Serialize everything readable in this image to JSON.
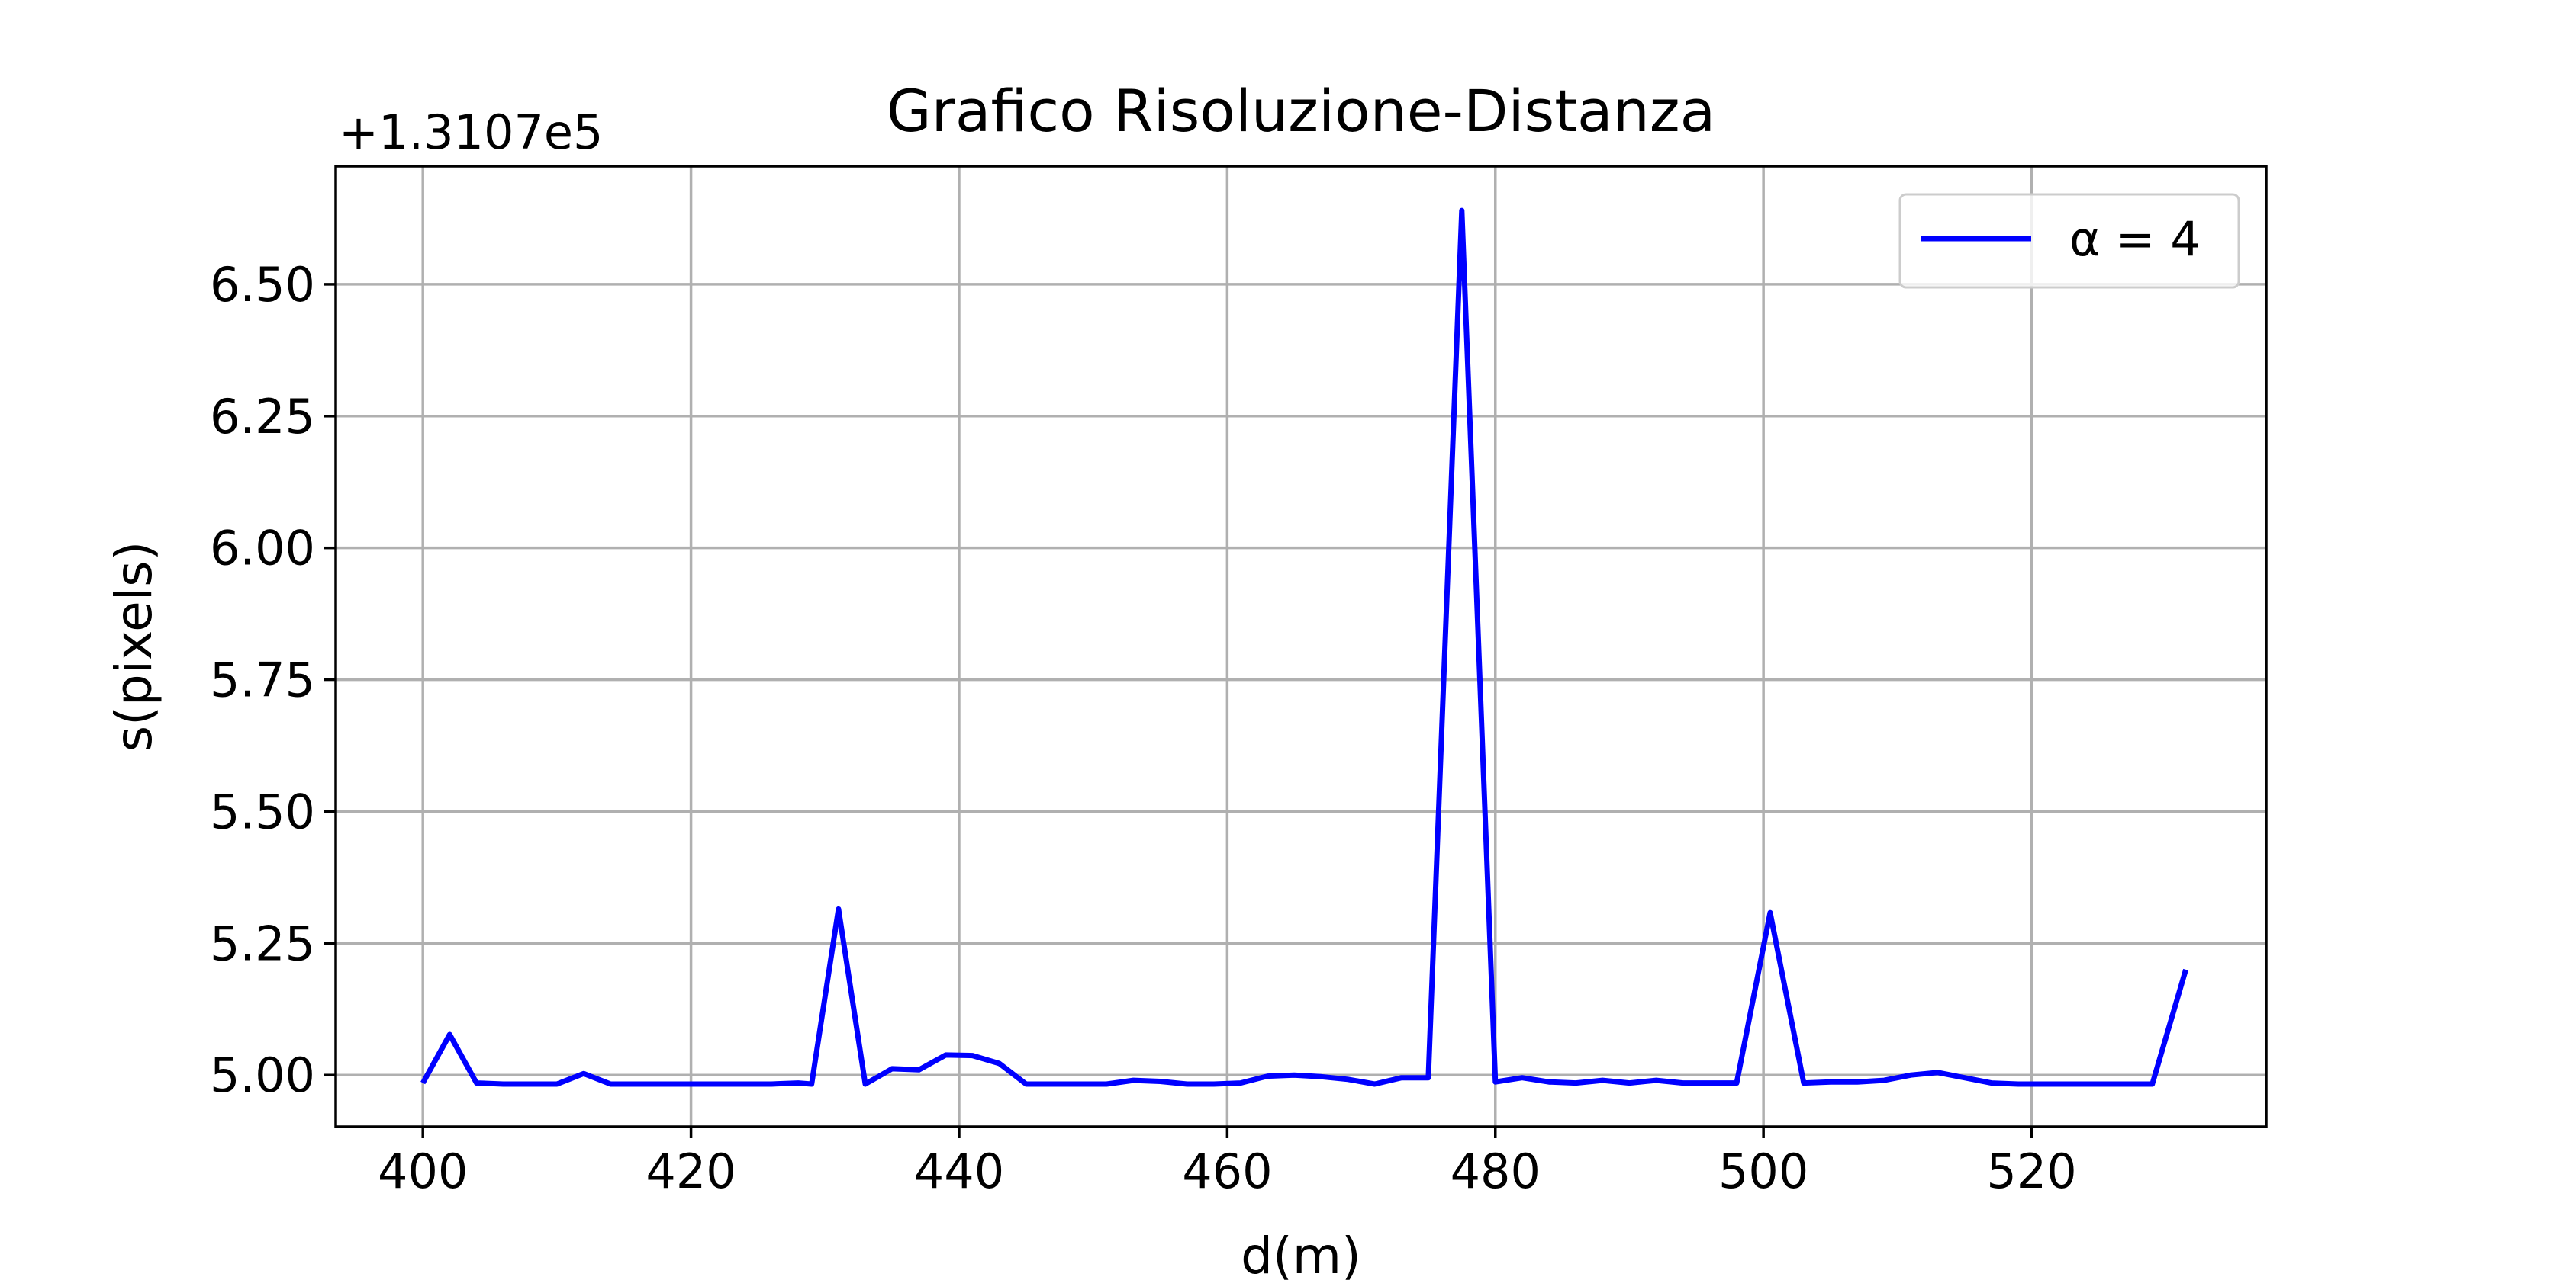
{
  "chart_data": {
    "type": "line",
    "title": "Grafico Risoluzione-Distanza",
    "xlabel": "d(m)",
    "ylabel": "s(pixels)",
    "y_offset_label": "+1.3107e5",
    "xlim": [
      393.5,
      537.5
    ],
    "ylim": [
      4.902,
      6.724
    ],
    "x_ticks": [
      400,
      420,
      440,
      460,
      480,
      500,
      520
    ],
    "x_tick_labels": [
      "400",
      "420",
      "440",
      "460",
      "480",
      "500",
      "520"
    ],
    "y_ticks": [
      5.0,
      5.25,
      5.5,
      5.75,
      6.0,
      6.25,
      6.5
    ],
    "y_tick_labels": [
      "5.00",
      "5.25",
      "5.50",
      "5.75",
      "6.00",
      "6.25",
      "6.50"
    ],
    "grid": true,
    "legend_position": "top-right",
    "line_color": "#0000ff",
    "series": [
      {
        "name": "α = 4",
        "x": [
          400,
          402,
          404,
          406,
          408,
          410,
          412,
          414,
          416,
          418,
          420,
          422,
          424,
          426,
          428,
          429,
          431,
          433,
          435,
          437,
          439,
          441,
          443,
          445,
          447,
          449,
          451,
          453,
          455,
          457,
          459,
          461,
          463,
          465,
          467,
          469,
          471,
          473,
          475,
          477.5,
          480,
          482,
          484,
          486,
          488,
          490,
          492,
          494,
          496,
          498,
          500.5,
          503,
          505,
          507,
          509,
          511,
          513,
          515,
          517,
          519,
          521,
          523,
          525,
          527,
          529,
          531.5
        ],
        "values": [
          4.985,
          5.077,
          4.985,
          4.983,
          4.983,
          4.983,
          5.003,
          4.983,
          4.983,
          4.983,
          4.983,
          4.983,
          4.983,
          4.983,
          4.985,
          4.983,
          5.315,
          4.983,
          5.012,
          5.01,
          5.038,
          5.037,
          5.022,
          4.983,
          4.983,
          4.983,
          4.983,
          4.99,
          4.988,
          4.983,
          4.983,
          4.985,
          4.998,
          5.0,
          4.997,
          4.992,
          4.983,
          4.995,
          4.995,
          6.64,
          4.987,
          4.995,
          4.987,
          4.985,
          4.99,
          4.985,
          4.99,
          4.985,
          4.985,
          4.985,
          5.308,
          4.985,
          4.987,
          4.987,
          4.99,
          5.0,
          5.005,
          4.995,
          4.985,
          4.983,
          4.983,
          4.983,
          4.983,
          4.983,
          4.983,
          5.2
        ]
      }
    ]
  }
}
